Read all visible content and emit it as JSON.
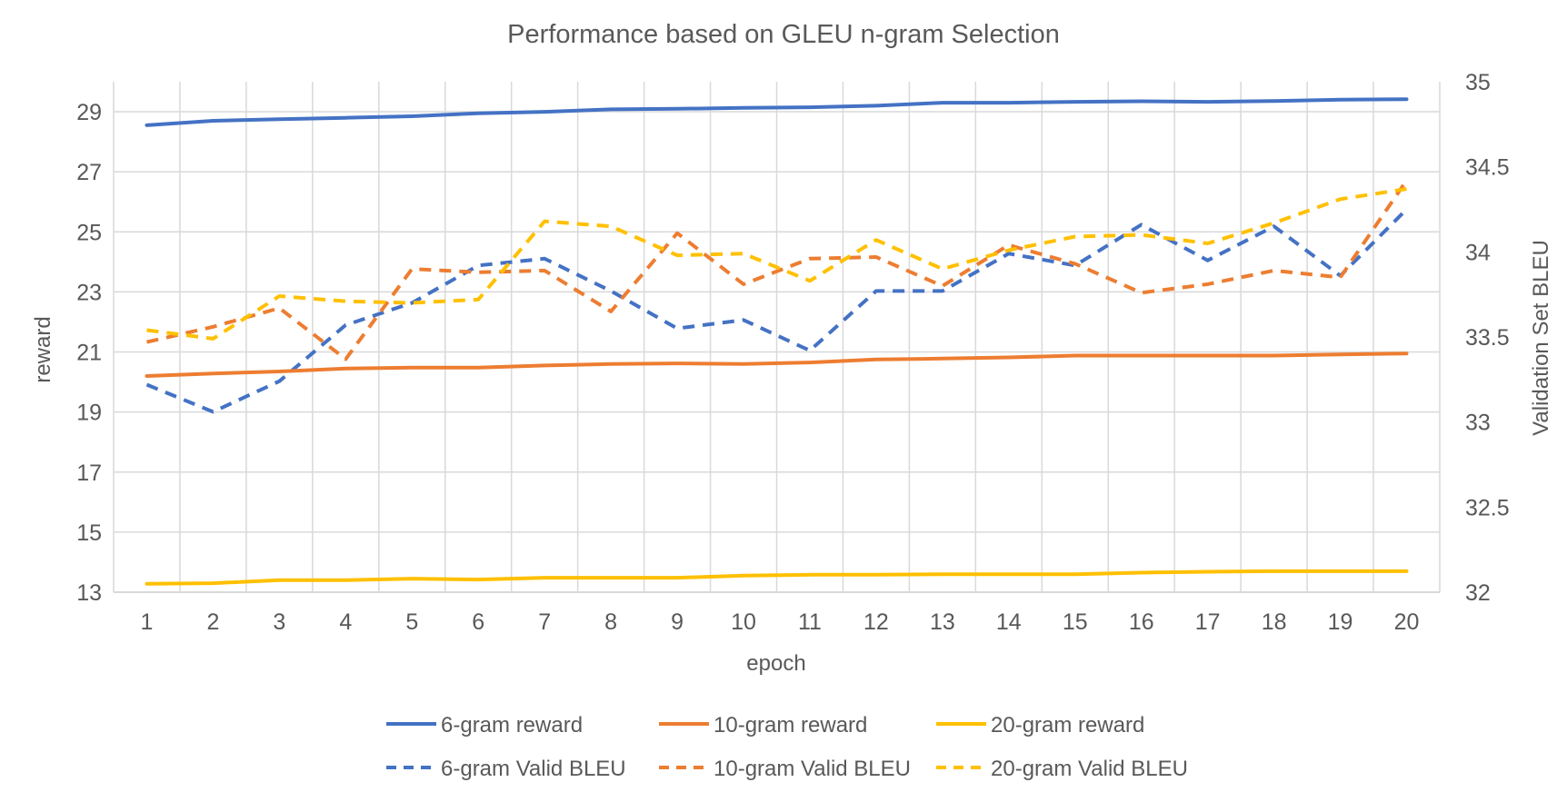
{
  "chart_data": {
    "type": "line",
    "title": "Performance based on GLEU n-gram Selection",
    "xlabel": "epoch",
    "ylabel": "reward",
    "y2label": "Validation Set BLEU",
    "x": [
      1,
      2,
      3,
      4,
      5,
      6,
      7,
      8,
      9,
      10,
      11,
      12,
      13,
      14,
      15,
      16,
      17,
      18,
      19,
      20
    ],
    "ylim": [
      13,
      30
    ],
    "yticks": [
      13,
      15,
      17,
      19,
      21,
      23,
      25,
      27,
      29
    ],
    "y2lim": [
      32,
      35
    ],
    "y2ticks": [
      32,
      32.5,
      33,
      33.5,
      34,
      34.5,
      35
    ],
    "grid": true,
    "legend_position": "bottom",
    "series": [
      {
        "name": "6-gram reward",
        "axis": "left",
        "style": "solid",
        "color": "#4472C4",
        "values": [
          28.55,
          28.7,
          28.75,
          28.8,
          28.85,
          28.95,
          29.0,
          29.08,
          29.1,
          29.13,
          29.15,
          29.2,
          29.3,
          29.3,
          29.33,
          29.35,
          29.33,
          29.36,
          29.4,
          29.42
        ]
      },
      {
        "name": "10-gram reward",
        "axis": "left",
        "style": "solid",
        "color": "#ED7D31",
        "values": [
          20.2,
          20.28,
          20.35,
          20.45,
          20.48,
          20.48,
          20.55,
          20.6,
          20.62,
          20.6,
          20.65,
          20.75,
          20.78,
          20.82,
          20.88,
          20.88,
          20.88,
          20.88,
          20.92,
          20.95
        ]
      },
      {
        "name": "20-gram reward",
        "axis": "left",
        "style": "solid",
        "color": "#FFC000",
        "values": [
          13.28,
          13.3,
          13.4,
          13.4,
          13.45,
          13.42,
          13.48,
          13.48,
          13.48,
          13.55,
          13.58,
          13.58,
          13.6,
          13.6,
          13.6,
          13.65,
          13.68,
          13.7,
          13.7,
          13.7
        ]
      },
      {
        "name": "6-gram Valid BLEU",
        "axis": "right",
        "style": "dashed",
        "color": "#4472C4",
        "values": [
          33.22,
          33.06,
          33.24,
          33.57,
          33.7,
          33.92,
          33.96,
          33.77,
          33.55,
          33.6,
          33.42,
          33.77,
          33.77,
          33.99,
          33.92,
          34.16,
          33.95,
          34.15,
          33.86,
          34.25
        ]
      },
      {
        "name": "10-gram Valid BLEU",
        "axis": "right",
        "style": "dashed",
        "color": "#ED7D31",
        "values": [
          33.47,
          33.56,
          33.67,
          33.37,
          33.9,
          33.88,
          33.89,
          33.65,
          34.11,
          33.81,
          33.96,
          33.97,
          33.8,
          34.04,
          33.93,
          33.76,
          33.81,
          33.89,
          33.85,
          34.42
        ]
      },
      {
        "name": "20-gram Valid BLEU",
        "axis": "right",
        "style": "dashed",
        "color": "#FFC000",
        "values": [
          33.54,
          33.49,
          33.74,
          33.71,
          33.7,
          33.72,
          34.18,
          34.15,
          33.98,
          33.99,
          33.83,
          34.07,
          33.9,
          34.01,
          34.09,
          34.1,
          34.05,
          34.17,
          34.31,
          34.37
        ]
      }
    ]
  }
}
